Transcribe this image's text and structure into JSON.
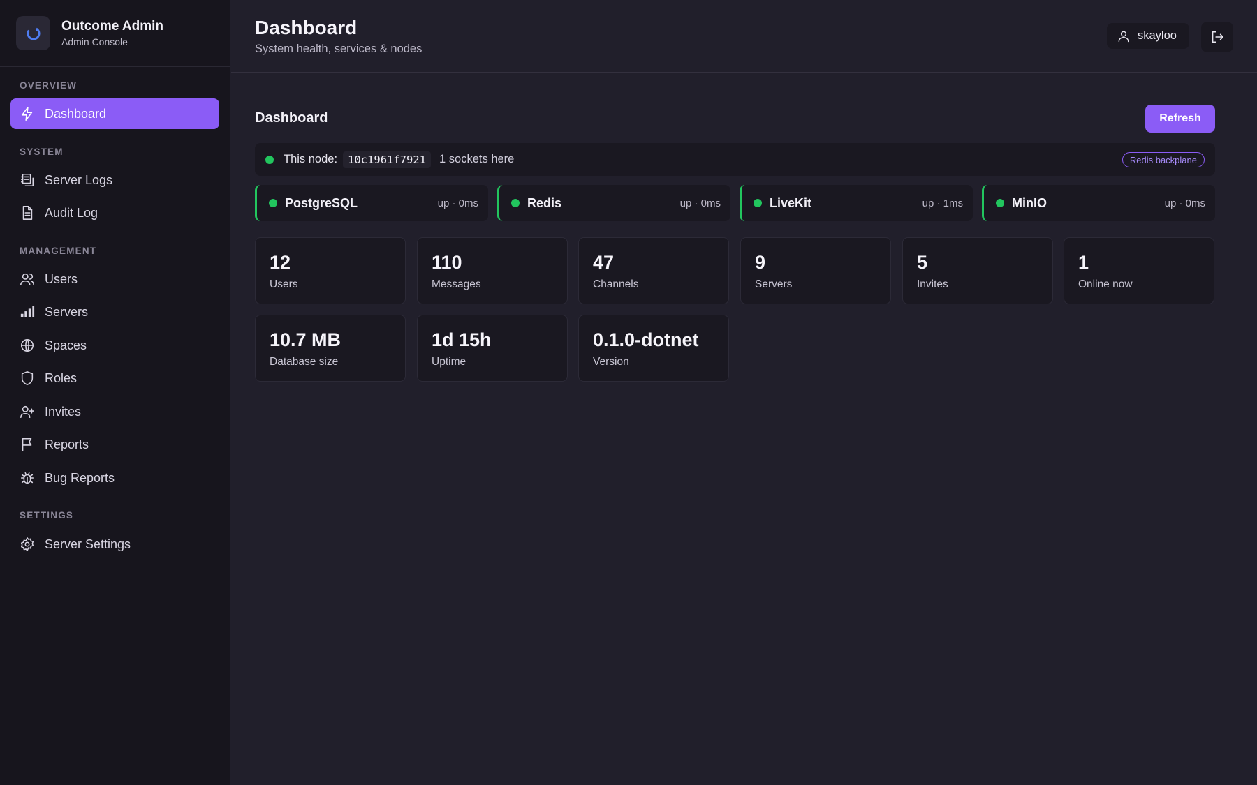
{
  "brand": {
    "title": "Outcome Admin",
    "subtitle": "Admin Console"
  },
  "sidebar": {
    "sections": {
      "overview": "OVERVIEW",
      "system": "SYSTEM",
      "management": "MANAGEMENT",
      "settings": "SETTINGS"
    },
    "items": {
      "dashboard": "Dashboard",
      "server_logs": "Server Logs",
      "audit_log": "Audit Log",
      "users": "Users",
      "servers": "Servers",
      "spaces": "Spaces",
      "roles": "Roles",
      "invites": "Invites",
      "reports": "Reports",
      "bug_reports": "Bug Reports",
      "server_settings": "Server Settings"
    },
    "active": "dashboard"
  },
  "header": {
    "title": "Dashboard",
    "subtitle": "System health, services & nodes",
    "username": "skayloo"
  },
  "main": {
    "section_title": "Dashboard",
    "refresh_label": "Refresh",
    "node": {
      "label": "This node:",
      "id": "10c1961f7921",
      "sockets": "1 sockets here",
      "badge": "Redis backplane"
    },
    "services": [
      {
        "name": "PostgreSQL",
        "status": "up · 0ms"
      },
      {
        "name": "Redis",
        "status": "up · 0ms"
      },
      {
        "name": "LiveKit",
        "status": "up · 1ms"
      },
      {
        "name": "MinIO",
        "status": "up · 0ms"
      }
    ],
    "stats": [
      {
        "value": "12",
        "label": "Users"
      },
      {
        "value": "110",
        "label": "Messages"
      },
      {
        "value": "47",
        "label": "Channels"
      },
      {
        "value": "9",
        "label": "Servers"
      },
      {
        "value": "5",
        "label": "Invites"
      },
      {
        "value": "1",
        "label": "Online now"
      },
      {
        "value": "10.7 MB",
        "label": "Database size"
      },
      {
        "value": "1d 15h",
        "label": "Uptime"
      },
      {
        "value": "0.1.0-dotnet",
        "label": "Version"
      }
    ]
  },
  "colors": {
    "accent": "#8b5cf6",
    "status_up": "#22c55e",
    "sidebar_bg": "#17151d",
    "main_bg": "#211f2b",
    "card_bg": "#1a1821"
  }
}
